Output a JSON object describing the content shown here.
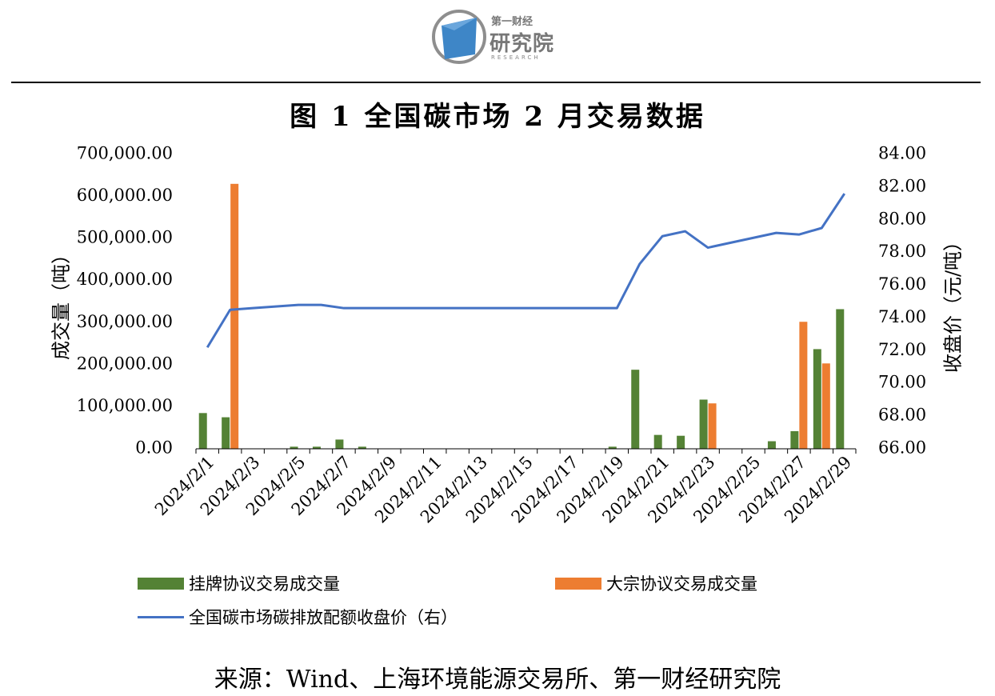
{
  "logo": {
    "brand_small": "第一财经",
    "brand_big": "研究院",
    "brand_en": "RESEARCH"
  },
  "chart_data": {
    "type": "bar",
    "title": "图 1 全国碳市场 2 月交易数据",
    "ylabel_left": "成交量（吨）",
    "ylabel_right": "收盘价（元/吨）",
    "y_left_ticks": [
      "0.00",
      "100,000.00",
      "200,000.00",
      "300,000.00",
      "400,000.00",
      "500,000.00",
      "600,000.00",
      "700,000.00"
    ],
    "y_right_ticks": [
      "66.00",
      "68.00",
      "70.00",
      "72.00",
      "74.00",
      "76.00",
      "78.00",
      "80.00",
      "82.00",
      "84.00"
    ],
    "ylim_left": [
      0,
      700000
    ],
    "ylim_right": [
      66,
      84
    ],
    "x_tick_labels": [
      "2024/2/1",
      "2024/2/3",
      "2024/2/5",
      "2024/2/7",
      "2024/2/9",
      "2024/2/11",
      "2024/2/13",
      "2024/2/15",
      "2024/2/17",
      "2024/2/19",
      "2024/2/21",
      "2024/2/23",
      "2024/2/25",
      "2024/2/27",
      "2024/2/29"
    ],
    "categories": [
      "2024/2/1",
      "2024/2/2",
      "2024/2/3",
      "2024/2/4",
      "2024/2/5",
      "2024/2/6",
      "2024/2/7",
      "2024/2/8",
      "2024/2/9",
      "2024/2/10",
      "2024/2/11",
      "2024/2/12",
      "2024/2/13",
      "2024/2/14",
      "2024/2/15",
      "2024/2/16",
      "2024/2/17",
      "2024/2/18",
      "2024/2/19",
      "2024/2/20",
      "2024/2/21",
      "2024/2/22",
      "2024/2/23",
      "2024/2/24",
      "2024/2/25",
      "2024/2/26",
      "2024/2/27",
      "2024/2/28",
      "2024/2/29"
    ],
    "series": [
      {
        "name": "挂牌协议交易成交量",
        "kind": "bar",
        "axis": "left",
        "color": "#548235",
        "values": [
          85000,
          75000,
          0,
          0,
          5000,
          5000,
          22000,
          5000,
          0,
          0,
          0,
          0,
          0,
          0,
          0,
          0,
          0,
          0,
          5000,
          188000,
          33000,
          31000,
          117000,
          0,
          0,
          18000,
          42000,
          237000,
          332000
        ]
      },
      {
        "name": "大宗协议交易成交量",
        "kind": "bar",
        "axis": "left",
        "color": "#ED7D31",
        "values": [
          0,
          630000,
          0,
          0,
          0,
          0,
          0,
          0,
          0,
          0,
          0,
          0,
          0,
          0,
          0,
          0,
          0,
          0,
          0,
          0,
          0,
          0,
          108000,
          0,
          0,
          0,
          302000,
          203000,
          0
        ]
      },
      {
        "name": "全国碳市场碳排放配额收盘价（右）",
        "kind": "line",
        "axis": "right",
        "color": "#4472C4",
        "values": [
          72.2,
          74.5,
          74.6,
          74.7,
          74.8,
          74.8,
          74.6,
          74.6,
          74.6,
          74.6,
          74.6,
          74.6,
          74.6,
          74.6,
          74.6,
          74.6,
          74.6,
          74.6,
          74.6,
          77.3,
          79.0,
          79.3,
          78.3,
          78.6,
          78.9,
          79.2,
          79.1,
          79.5,
          81.6
        ]
      }
    ],
    "grid": false,
    "legend_position": "bottom"
  },
  "source": "来源：Wind、上海环境能源交易所、第一财经研究院"
}
